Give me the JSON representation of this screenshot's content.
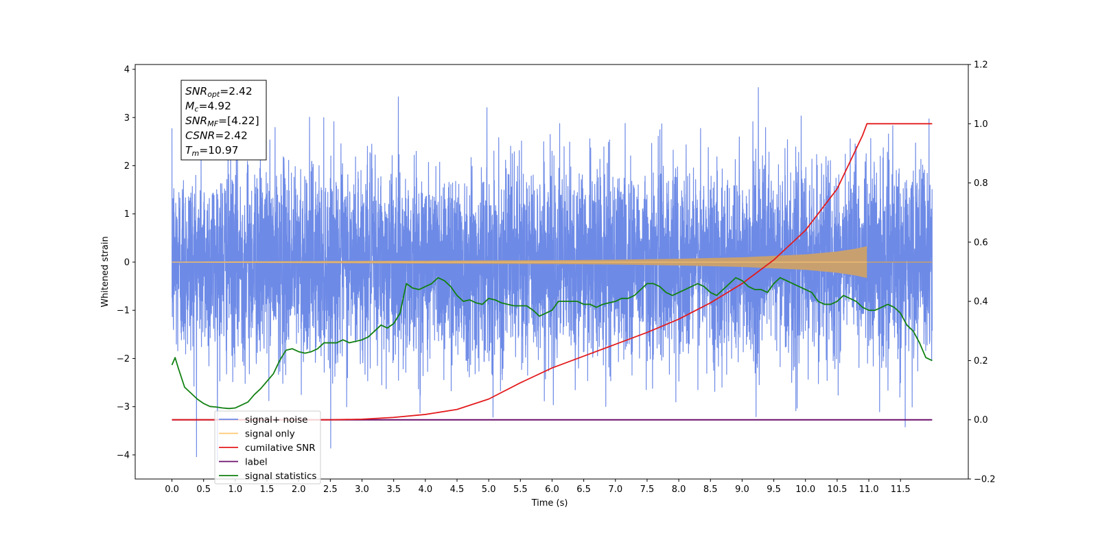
{
  "chart_data": {
    "type": "line",
    "xlabel": "Time (s)",
    "ylabel_left": "Whitened strain",
    "ylabel_right": "",
    "xlim": [
      -0.58,
      12.57
    ],
    "ylim_left": [
      -4.5,
      4.1
    ],
    "ylim_right": [
      -0.2,
      1.2
    ],
    "x_ticks": [
      "0.0",
      "0.5",
      "1.0",
      "1.5",
      "2.0",
      "2.5",
      "3.0",
      "3.5",
      "4.0",
      "4.5",
      "5.0",
      "5.5",
      "6.0",
      "6.5",
      "7.0",
      "7.5",
      "8.0",
      "8.5",
      "9.0",
      "9.5",
      "10.0",
      "10.5",
      "11.0",
      "11.5"
    ],
    "y_ticks_left": [
      "−4",
      "−3",
      "−2",
      "−1",
      "0",
      "1",
      "2",
      "3",
      "4"
    ],
    "y_ticks_right": [
      "−0.2",
      "0.0",
      "0.2",
      "0.4",
      "0.6",
      "0.8",
      "1.0",
      "1.2"
    ],
    "grid": false,
    "legend_position": "lower-left",
    "colors": {
      "signal_noise": "#6d8ae6",
      "signal_only": "#fec770",
      "signal_fill": "#c8a070",
      "cumulative_snr": "#e31a1c",
      "label": "#6a0f6a",
      "statistics": "#118011"
    },
    "series": [
      {
        "name": "signal+ noise",
        "axis": "left",
        "x_range": [
          0.0,
          12.0
        ],
        "typical_amplitude": 1.0,
        "peak_max": 3.72,
        "peak_min": -4.12
      },
      {
        "name": "signal only",
        "axis": "left",
        "x_range": [
          0.0,
          10.97
        ],
        "envelope_x": [
          0.0,
          2.0,
          4.0,
          6.0,
          7.0,
          8.0,
          9.0,
          9.5,
          10.0,
          10.5,
          10.8,
          10.97
        ],
        "envelope_amp": [
          0.01,
          0.02,
          0.03,
          0.04,
          0.05,
          0.07,
          0.1,
          0.13,
          0.16,
          0.22,
          0.28,
          0.33
        ]
      },
      {
        "name": "cumilative SNR",
        "axis": "right",
        "x": [
          0.0,
          2.5,
          3.0,
          3.5,
          4.0,
          4.5,
          5.0,
          5.5,
          6.0,
          6.5,
          7.0,
          7.5,
          8.0,
          8.5,
          9.0,
          9.5,
          10.0,
          10.5,
          10.9,
          10.97,
          11.5,
          12.0
        ],
        "y": [
          0.0,
          0.0,
          0.002,
          0.008,
          0.018,
          0.035,
          0.07,
          0.125,
          0.175,
          0.215,
          0.255,
          0.295,
          0.34,
          0.395,
          0.46,
          0.54,
          0.64,
          0.78,
          0.96,
          1.0,
          1.0,
          1.0
        ]
      },
      {
        "name": "label",
        "axis": "right",
        "x": [
          0.0,
          12.0
        ],
        "y": [
          0.0,
          0.0
        ]
      },
      {
        "name": "signal statistics",
        "axis": "right",
        "x": [
          0.0,
          0.05,
          0.1,
          0.2,
          0.3,
          0.4,
          0.5,
          0.6,
          0.7,
          0.8,
          0.9,
          1.0,
          1.1,
          1.2,
          1.3,
          1.4,
          1.5,
          1.6,
          1.7,
          1.8,
          1.9,
          2.0,
          2.1,
          2.2,
          2.3,
          2.4,
          2.5,
          2.6,
          2.7,
          2.8,
          2.9,
          3.0,
          3.1,
          3.2,
          3.3,
          3.4,
          3.5,
          3.6,
          3.7,
          3.8,
          3.9,
          4.0,
          4.1,
          4.2,
          4.3,
          4.4,
          4.5,
          4.6,
          4.7,
          4.8,
          4.9,
          5.0,
          5.1,
          5.2,
          5.3,
          5.4,
          5.5,
          5.6,
          5.7,
          5.8,
          5.9,
          6.0,
          6.1,
          6.2,
          6.3,
          6.4,
          6.5,
          6.6,
          6.7,
          6.8,
          6.9,
          7.0,
          7.1,
          7.2,
          7.3,
          7.4,
          7.5,
          7.6,
          7.7,
          7.8,
          7.9,
          8.0,
          8.1,
          8.2,
          8.3,
          8.4,
          8.5,
          8.6,
          8.7,
          8.8,
          8.9,
          9.0,
          9.1,
          9.2,
          9.3,
          9.4,
          9.5,
          9.6,
          9.7,
          9.8,
          9.9,
          10.0,
          10.1,
          10.2,
          10.3,
          10.4,
          10.5,
          10.6,
          10.7,
          10.8,
          10.9,
          11.0,
          11.1,
          11.2,
          11.3,
          11.4,
          11.5,
          11.6,
          11.7,
          11.8,
          11.9,
          12.0
        ],
        "y": [
          0.185,
          0.21,
          0.175,
          0.11,
          0.09,
          0.07,
          0.055,
          0.045,
          0.043,
          0.04,
          0.038,
          0.04,
          0.05,
          0.06,
          0.085,
          0.105,
          0.13,
          0.155,
          0.2,
          0.235,
          0.24,
          0.23,
          0.225,
          0.23,
          0.24,
          0.26,
          0.26,
          0.26,
          0.27,
          0.26,
          0.265,
          0.27,
          0.28,
          0.3,
          0.32,
          0.31,
          0.325,
          0.36,
          0.46,
          0.445,
          0.44,
          0.45,
          0.46,
          0.48,
          0.47,
          0.45,
          0.42,
          0.4,
          0.405,
          0.395,
          0.39,
          0.41,
          0.405,
          0.395,
          0.39,
          0.385,
          0.385,
          0.385,
          0.37,
          0.35,
          0.36,
          0.37,
          0.4,
          0.4,
          0.4,
          0.4,
          0.39,
          0.39,
          0.38,
          0.39,
          0.395,
          0.4,
          0.41,
          0.41,
          0.42,
          0.44,
          0.46,
          0.46,
          0.45,
          0.43,
          0.42,
          0.43,
          0.44,
          0.45,
          0.46,
          0.45,
          0.43,
          0.42,
          0.44,
          0.46,
          0.48,
          0.47,
          0.45,
          0.44,
          0.44,
          0.43,
          0.46,
          0.48,
          0.47,
          0.46,
          0.45,
          0.44,
          0.43,
          0.4,
          0.39,
          0.39,
          0.4,
          0.42,
          0.41,
          0.4,
          0.38,
          0.37,
          0.37,
          0.38,
          0.39,
          0.38,
          0.36,
          0.32,
          0.3,
          0.26,
          0.21,
          0.2
        ]
      }
    ],
    "annotation": {
      "lines": [
        {
          "main": "SNR",
          "sub": "opt",
          "rest": "=2.42"
        },
        {
          "main": "M",
          "sub": "c",
          "rest": "=4.92"
        },
        {
          "main": "SNR",
          "sub": "MF",
          "rest": "=[4.22]"
        },
        {
          "main": "CSNR",
          "sub": "",
          "rest": "=2.42"
        },
        {
          "main": "T",
          "sub": "m",
          "rest": "=10.97"
        }
      ]
    }
  }
}
